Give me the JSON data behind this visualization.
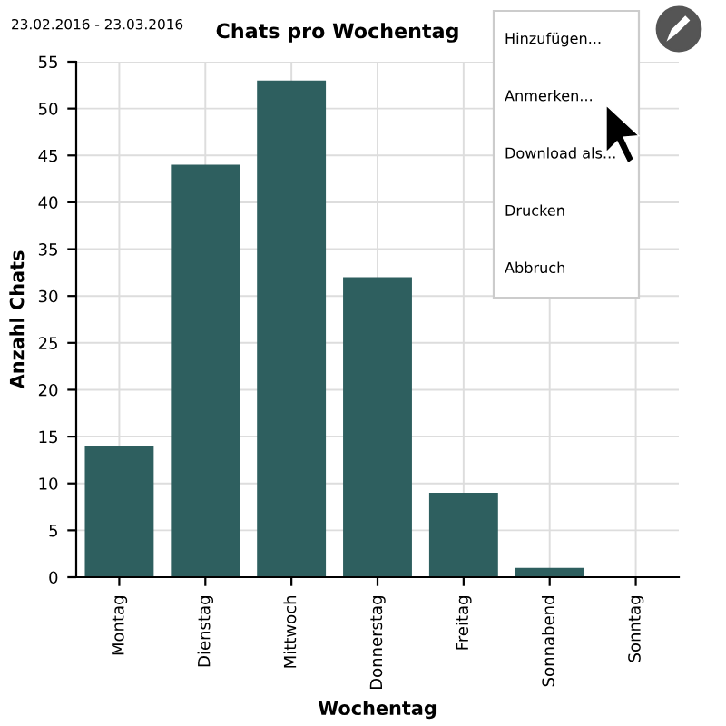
{
  "chart_data": {
    "type": "bar",
    "title": "Chats pro Wochentag",
    "subtitle": "23.02.2016 - 23.03.2016",
    "xlabel": "Wochentag",
    "ylabel": "Anzahl Chats",
    "categories": [
      "Montag",
      "Dienstag",
      "Mittwoch",
      "Donnerstag",
      "Freitag",
      "Sonnabend",
      "Sonntag"
    ],
    "values": [
      14,
      44,
      53,
      32,
      9,
      1,
      0
    ],
    "color": "#2e5f5f",
    "ylim": [
      0,
      55
    ],
    "yticks": [
      0,
      5,
      10,
      15,
      20,
      25,
      30,
      35,
      40,
      45,
      50,
      55
    ],
    "grid": true,
    "annotations": [
      "Hinzufügen...",
      "Anmerken...",
      "Download als...",
      "Drucken",
      "Abbruch"
    ]
  }
}
